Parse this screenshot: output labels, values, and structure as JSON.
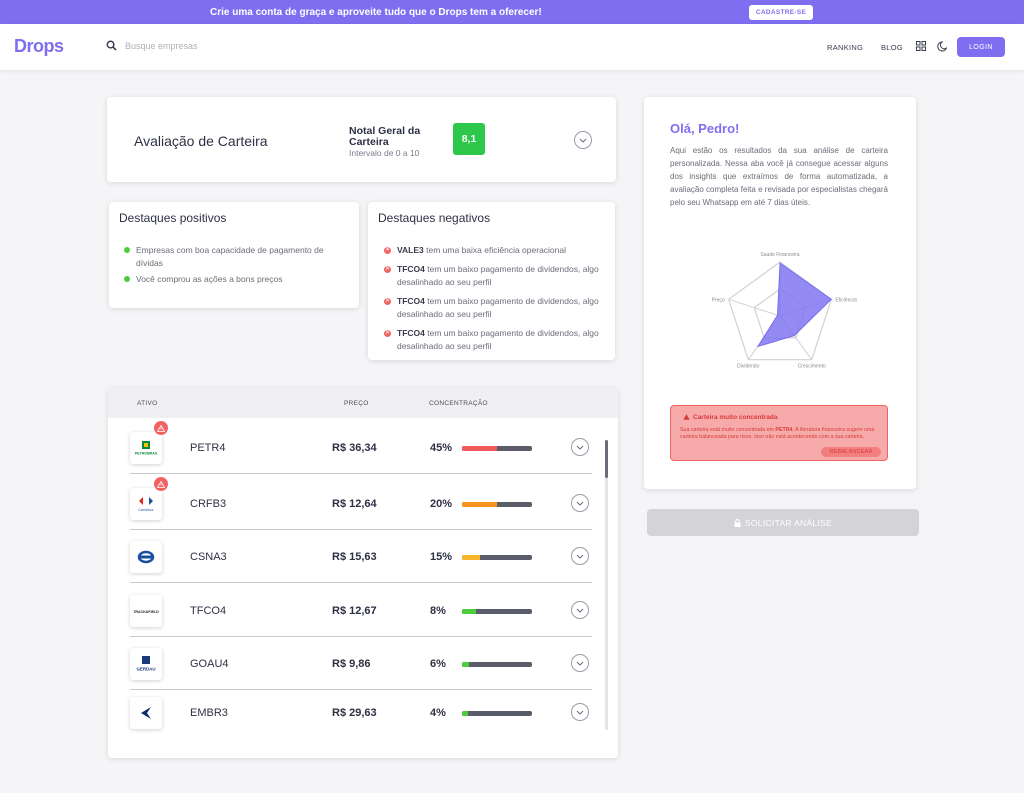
{
  "banner": {
    "text": "Crie uma conta de graça e aproveite tudo que o Drops tem a oferecer!",
    "button": "CADASTRE-SE"
  },
  "nav": {
    "logo": "Drops",
    "search_placeholder": "Busque empresas",
    "links": [
      "RANKING",
      "BLOG"
    ],
    "login": "LOGIN"
  },
  "evaluation": {
    "title": "Avaliação de Carteira",
    "grade_label": "Notal Geral da Carteira",
    "grade_range": "Intervalo de 0 a 10",
    "grade": "8,1"
  },
  "positives": {
    "title": "Destaques positivos",
    "items": [
      "Empresas com boa capacidade de pagamento de dívidas",
      "Você comprou as ações a bons preços"
    ]
  },
  "negatives": {
    "title": "Destaques negativos",
    "items": [
      {
        "ticker": "VALE3",
        "text": " tem uma baixa eficiência operacional"
      },
      {
        "ticker": "TFCO4",
        "text": " tem um baixo pagamento de dividendos, algo desalinhado ao seu perfil"
      },
      {
        "ticker": "TFCO4",
        "text": " tem um baixo pagamento de dividendos, algo desalinhado ao seu perfil"
      },
      {
        "ticker": "TFCO4",
        "text": " tem um baixo pagamento de dividendos, algo desalinhado ao seu perfil"
      }
    ]
  },
  "table": {
    "headers": [
      "ATIVO",
      "PREÇO",
      "CONCENTRAÇÃO"
    ],
    "rows": [
      {
        "ticker": "PETR4",
        "price": "R$ 36,34",
        "pct": "45%",
        "fill": 0.5,
        "color": "#f05a5a",
        "warn": true,
        "logo": "PETROBRAS"
      },
      {
        "ticker": "CRFB3",
        "price": "R$ 12,64",
        "pct": "20%",
        "fill": 0.5,
        "color": "#f7941d",
        "warn": true,
        "logo": "Carrefour"
      },
      {
        "ticker": "CSNA3",
        "price": "R$ 15,63",
        "pct": "15%",
        "fill": 0.26,
        "color": "#f6b52a",
        "warn": false,
        "logo": ""
      },
      {
        "ticker": "TFCO4",
        "price": "R$ 12,67",
        "pct": "8%",
        "fill": 0.2,
        "color": "#4ccd3c",
        "warn": false,
        "logo": "TRACK&FIELD"
      },
      {
        "ticker": "GOAU4",
        "price": "R$ 9,86",
        "pct": "6%",
        "fill": 0.1,
        "color": "#4ccd3c",
        "warn": false,
        "logo": "GERDAU"
      },
      {
        "ticker": "EMBR3",
        "price": "R$ 29,63",
        "pct": "4%",
        "fill": 0.09,
        "color": "#4ccd3c",
        "warn": false,
        "logo": ""
      }
    ]
  },
  "sidebar": {
    "greeting": "Olá, Pedro!",
    "text": "Aqui estão os resultados da sua análise de carteira personalizada. Nessa aba você já consegue acessar alguns dos insights que extraímos de forma automatizada, a avaliação completa feita e revisada por especialistas chegará pelo seu Whatsapp em até 7 dias úteis.",
    "radar_labels": [
      "Saúde Financeira",
      "Eficiência",
      "Crescimento",
      "Dividendo",
      "Preço"
    ],
    "radar_values": [
      0.98,
      1.0,
      0.45,
      0.7,
      0.05
    ],
    "alert_title": "Carteira muito concentrada",
    "alert_text_pre": "Sua carteira está muito concentrada em ",
    "alert_ticker": "PETR4",
    "alert_text_post": ". A literatura financeira sugere uma carteira balanceada para risco. Isso não está acontecendo com a sua carteira.",
    "alert_button": "REBALANCEAR",
    "request_button": "SOLICITAR ANÁLISE"
  },
  "colors": {
    "accent": "#7f6ff0",
    "grade": "#2dc74b",
    "danger": "#f06464"
  }
}
